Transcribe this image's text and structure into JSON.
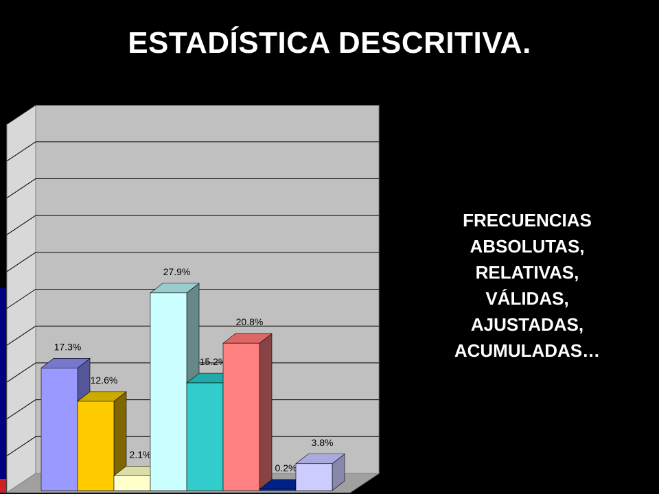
{
  "page": {
    "title": "ESTADÍSTICA DESCRITIVA.",
    "side_text": [
      "FRECUENCIAS",
      "ABSOLUTAS,",
      "RELATIVAS,",
      "VÁLIDAS,",
      "AJUSTADAS,",
      "ACUMULADAS…"
    ]
  },
  "chart_data": {
    "type": "bar",
    "style": "3d-column",
    "title": "",
    "xlabel": "",
    "ylabel": "",
    "ylim": [
      0,
      52
    ],
    "gridlines": 10,
    "grid": true,
    "categories": [
      "",
      "",
      "",
      "",
      "",
      "",
      "",
      ""
    ],
    "values": [
      17.3,
      12.6,
      2.1,
      27.9,
      15.2,
      20.8,
      0.2,
      3.8
    ],
    "data_labels": [
      "17.3%",
      "12.6%",
      "2.1%",
      "27.9%",
      "15.2%",
      "20.8%",
      "0.2%",
      "3.8%"
    ],
    "colors": {
      "front": [
        "#9999ff",
        "#ffcc00",
        "#ffffcc",
        "#ccffff",
        "#33cccc",
        "#ff8080",
        "#0033aa",
        "#ccccff"
      ],
      "top": [
        "#7777cc",
        "#ccaa00",
        "#ddddaa",
        "#99cccc",
        "#22aaaa",
        "#dd6666",
        "#002288",
        "#aaaadd"
      ],
      "side": [
        "#555599",
        "#806600",
        "#aaaa88",
        "#668888",
        "#118888",
        "#884444",
        "#001155",
        "#8888aa"
      ],
      "plot_back": "#c0c0c0",
      "plot_side": "#d8d8d8",
      "floor": "#a0a0a0",
      "gridline": "#000000"
    }
  }
}
